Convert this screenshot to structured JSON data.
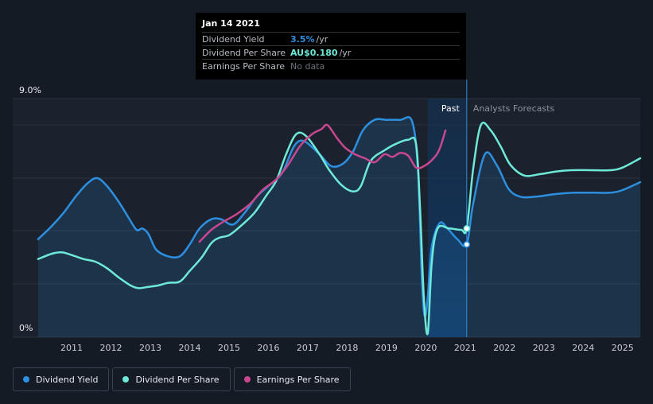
{
  "chart_data": {
    "type": "line",
    "y_axis": {
      "max_label": "9.0%",
      "min_label": "0%",
      "ylim": [
        0,
        9
      ]
    },
    "x_ticks": [
      "2011",
      "2012",
      "2013",
      "2014",
      "2015",
      "2016",
      "2017",
      "2018",
      "2019",
      "2020",
      "2021",
      "2022",
      "2023",
      "2024",
      "2025"
    ],
    "xlim": [
      2010.15,
      2025.45
    ],
    "divider_year": 2021.04,
    "shade_start_year": 2020.05,
    "past_label": "Past",
    "forecast_label": "Analysts Forecasts",
    "series": [
      {
        "name": "Dividend Yield",
        "color": "#2d8fe0",
        "fill": true,
        "points": [
          [
            2010.15,
            3.7
          ],
          [
            2010.5,
            4.2
          ],
          [
            2010.8,
            4.7
          ],
          [
            2011.1,
            5.3
          ],
          [
            2011.4,
            5.8
          ],
          [
            2011.65,
            6.0
          ],
          [
            2011.9,
            5.7
          ],
          [
            2012.2,
            5.1
          ],
          [
            2012.45,
            4.5
          ],
          [
            2012.65,
            4.05
          ],
          [
            2012.8,
            4.1
          ],
          [
            2012.95,
            3.9
          ],
          [
            2013.15,
            3.3
          ],
          [
            2013.45,
            3.05
          ],
          [
            2013.75,
            3.05
          ],
          [
            2014.0,
            3.5
          ],
          [
            2014.25,
            4.1
          ],
          [
            2014.55,
            4.45
          ],
          [
            2014.8,
            4.45
          ],
          [
            2015.1,
            4.25
          ],
          [
            2015.4,
            4.7
          ],
          [
            2015.7,
            5.3
          ],
          [
            2016.0,
            5.7
          ],
          [
            2016.35,
            6.2
          ],
          [
            2016.65,
            7.2
          ],
          [
            2016.9,
            7.4
          ],
          [
            2017.3,
            6.9
          ],
          [
            2017.6,
            6.45
          ],
          [
            2017.9,
            6.55
          ],
          [
            2018.15,
            7.0
          ],
          [
            2018.4,
            7.8
          ],
          [
            2018.7,
            8.2
          ],
          [
            2019.0,
            8.2
          ],
          [
            2019.35,
            8.2
          ],
          [
            2019.65,
            8.15
          ],
          [
            2019.8,
            6.3
          ],
          [
            2019.9,
            2.2
          ],
          [
            2019.97,
            0.8
          ],
          [
            2020.05,
            1.5
          ],
          [
            2020.15,
            3.4
          ],
          [
            2020.35,
            4.3
          ],
          [
            2020.55,
            4.1
          ],
          [
            2020.8,
            3.7
          ],
          [
            2021.04,
            3.5
          ],
          [
            2021.2,
            5.0
          ],
          [
            2021.5,
            6.9
          ],
          [
            2021.8,
            6.5
          ],
          [
            2022.1,
            5.6
          ],
          [
            2022.4,
            5.3
          ],
          [
            2022.8,
            5.3
          ],
          [
            2023.3,
            5.4
          ],
          [
            2023.8,
            5.45
          ],
          [
            2024.3,
            5.45
          ],
          [
            2024.7,
            5.45
          ],
          [
            2025.0,
            5.55
          ],
          [
            2025.45,
            5.85
          ]
        ]
      },
      {
        "name": "Dividend Per Share",
        "color": "#6ee9d8",
        "fill": false,
        "points": [
          [
            2010.15,
            2.95
          ],
          [
            2010.5,
            3.15
          ],
          [
            2010.75,
            3.2
          ],
          [
            2011.0,
            3.1
          ],
          [
            2011.3,
            2.95
          ],
          [
            2011.6,
            2.85
          ],
          [
            2011.9,
            2.6
          ],
          [
            2012.2,
            2.25
          ],
          [
            2012.5,
            1.95
          ],
          [
            2012.7,
            1.85
          ],
          [
            2012.95,
            1.9
          ],
          [
            2013.2,
            1.95
          ],
          [
            2013.45,
            2.05
          ],
          [
            2013.75,
            2.1
          ],
          [
            2014.0,
            2.5
          ],
          [
            2014.3,
            3.0
          ],
          [
            2014.55,
            3.55
          ],
          [
            2014.75,
            3.75
          ],
          [
            2015.0,
            3.85
          ],
          [
            2015.3,
            4.2
          ],
          [
            2015.65,
            4.7
          ],
          [
            2015.95,
            5.35
          ],
          [
            2016.2,
            5.9
          ],
          [
            2016.45,
            6.9
          ],
          [
            2016.7,
            7.65
          ],
          [
            2016.95,
            7.6
          ],
          [
            2017.3,
            6.9
          ],
          [
            2017.55,
            6.3
          ],
          [
            2017.85,
            5.75
          ],
          [
            2018.15,
            5.5
          ],
          [
            2018.35,
            5.7
          ],
          [
            2018.6,
            6.65
          ],
          [
            2018.95,
            7.05
          ],
          [
            2019.25,
            7.3
          ],
          [
            2019.55,
            7.45
          ],
          [
            2019.75,
            7.3
          ],
          [
            2019.85,
            5.0
          ],
          [
            2019.95,
            1.5
          ],
          [
            2020.05,
            0.15
          ],
          [
            2020.15,
            2.8
          ],
          [
            2020.3,
            4.1
          ],
          [
            2020.6,
            4.1
          ],
          [
            2020.9,
            4.05
          ],
          [
            2021.04,
            4.1
          ],
          [
            2021.2,
            6.3
          ],
          [
            2021.4,
            8.0
          ],
          [
            2021.65,
            7.8
          ],
          [
            2021.9,
            7.2
          ],
          [
            2022.15,
            6.5
          ],
          [
            2022.5,
            6.1
          ],
          [
            2022.9,
            6.15
          ],
          [
            2023.3,
            6.25
          ],
          [
            2023.7,
            6.3
          ],
          [
            2024.2,
            6.3
          ],
          [
            2024.7,
            6.3
          ],
          [
            2025.0,
            6.4
          ],
          [
            2025.45,
            6.75
          ]
        ]
      },
      {
        "name": "Earnings Per Share",
        "color": "#c8478f",
        "fill": false,
        "points": [
          [
            2014.25,
            3.6
          ],
          [
            2014.55,
            4.05
          ],
          [
            2014.85,
            4.35
          ],
          [
            2015.2,
            4.65
          ],
          [
            2015.55,
            5.05
          ],
          [
            2015.85,
            5.55
          ],
          [
            2016.2,
            5.95
          ],
          [
            2016.5,
            6.5
          ],
          [
            2016.8,
            7.2
          ],
          [
            2017.1,
            7.65
          ],
          [
            2017.35,
            7.85
          ],
          [
            2017.5,
            8.0
          ],
          [
            2017.75,
            7.5
          ],
          [
            2017.95,
            7.15
          ],
          [
            2018.2,
            6.9
          ],
          [
            2018.45,
            6.75
          ],
          [
            2018.7,
            6.6
          ],
          [
            2018.95,
            6.9
          ],
          [
            2019.15,
            6.8
          ],
          [
            2019.35,
            6.95
          ],
          [
            2019.55,
            6.85
          ],
          [
            2019.75,
            6.4
          ],
          [
            2019.95,
            6.45
          ],
          [
            2020.2,
            6.75
          ],
          [
            2020.35,
            7.1
          ],
          [
            2020.5,
            7.8
          ]
        ]
      }
    ],
    "highlight_points": [
      {
        "series": "Dividend Per Share",
        "x": 2021.04,
        "y": 4.1
      },
      {
        "series": "Dividend Yield",
        "x": 2021.04,
        "y": 3.5
      }
    ]
  },
  "tooltip": {
    "date": "Jan 14 2021",
    "rows": [
      {
        "label": "Dividend Yield",
        "value": "3.5%",
        "unit": "/yr",
        "color": "#2d8fe0"
      },
      {
        "label": "Dividend Per Share",
        "value": "AU$0.180",
        "unit": "/yr",
        "color": "#6ee9d8"
      },
      {
        "label": "Earnings Per Share",
        "value": "No data",
        "unit": "",
        "color": "#6b717a"
      }
    ]
  },
  "legend": [
    {
      "label": "Dividend Yield",
      "color": "#2d8fe0"
    },
    {
      "label": "Dividend Per Share",
      "color": "#6ee9d8"
    },
    {
      "label": "Earnings Per Share",
      "color": "#c8478f"
    }
  ]
}
